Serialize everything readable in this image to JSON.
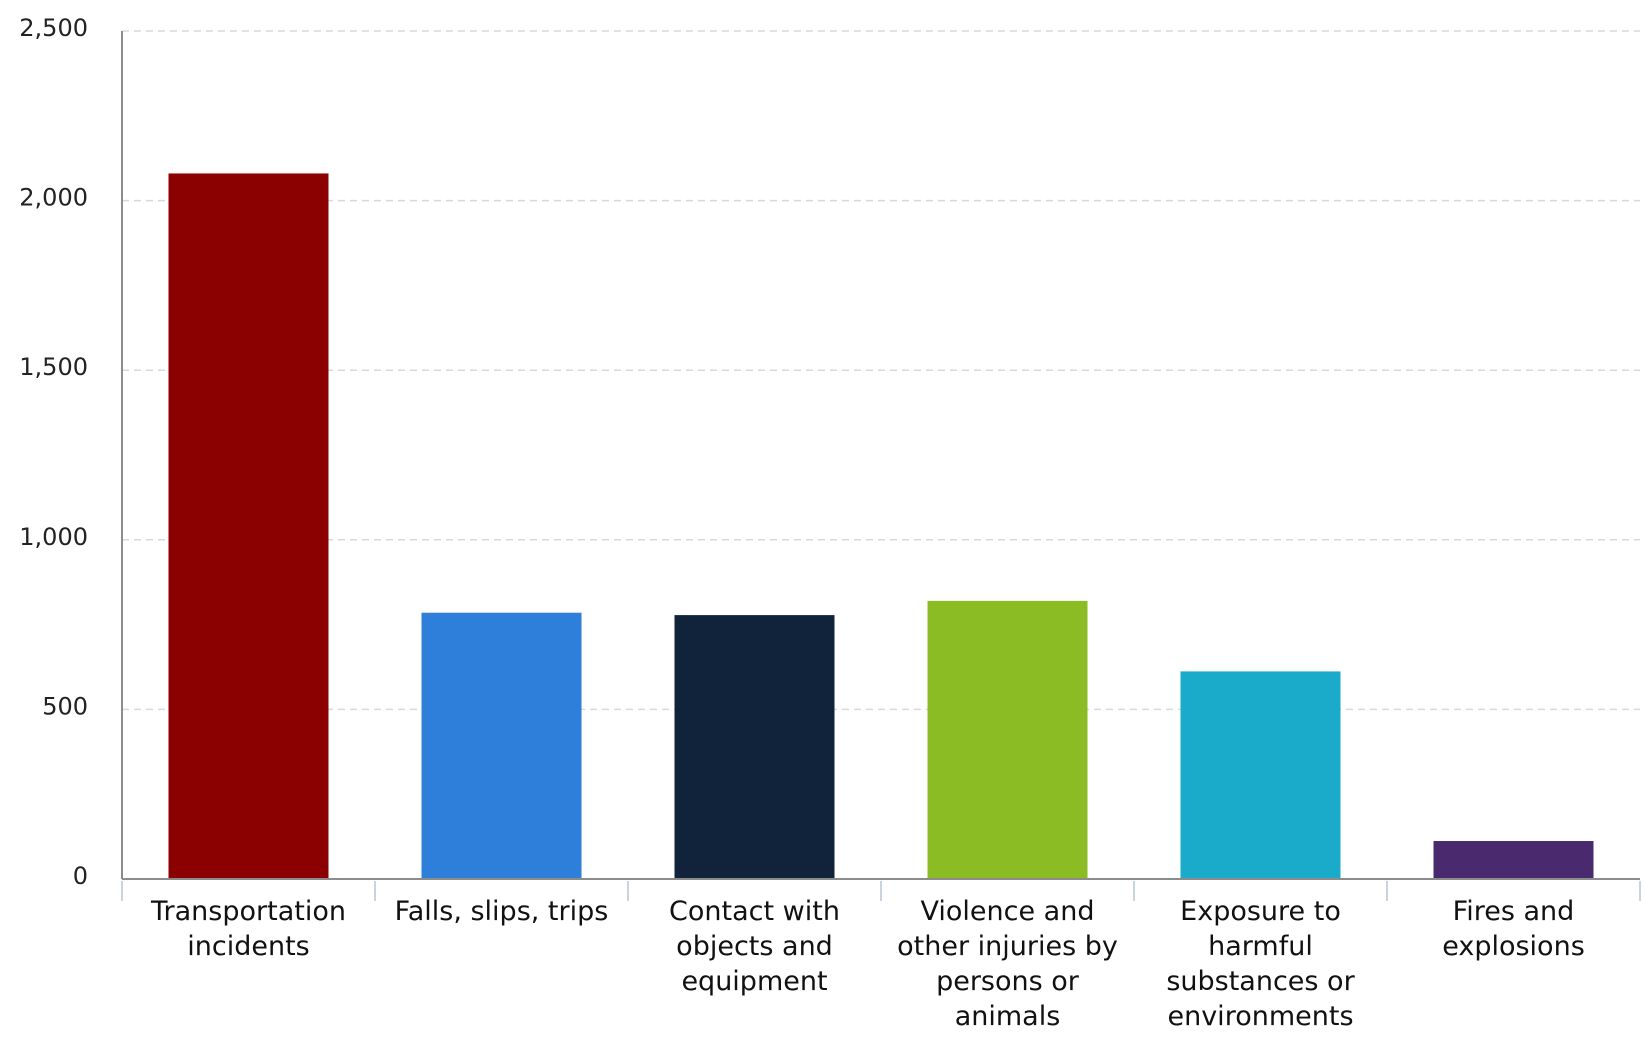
{
  "chart_data": {
    "type": "bar",
    "title": "",
    "xlabel": "",
    "ylabel": "",
    "ylim": [
      0,
      2500
    ],
    "yticks": [
      0,
      500,
      1000,
      1500,
      2000,
      2500
    ],
    "ytick_labels": [
      "0",
      "500",
      "1,000",
      "1,500",
      "2,000",
      "2,500"
    ],
    "grid": true,
    "categories": [
      [
        "Transportation",
        "incidents"
      ],
      [
        "Falls, slips, trips"
      ],
      [
        "Contact with",
        "objects and",
        "equipment"
      ],
      [
        "Violence and",
        "other injuries by",
        "persons or",
        "animals"
      ],
      [
        "Exposure to",
        "harmful",
        "substances or",
        "environments"
      ],
      [
        "Fires and",
        "explosions"
      ]
    ],
    "values": [
      2080,
      785,
      778,
      820,
      612,
      112
    ],
    "colors": [
      "#8b0000",
      "#2e7fd9",
      "#10233a",
      "#8cbc24",
      "#1aabcb",
      "#4a2a6e"
    ]
  }
}
